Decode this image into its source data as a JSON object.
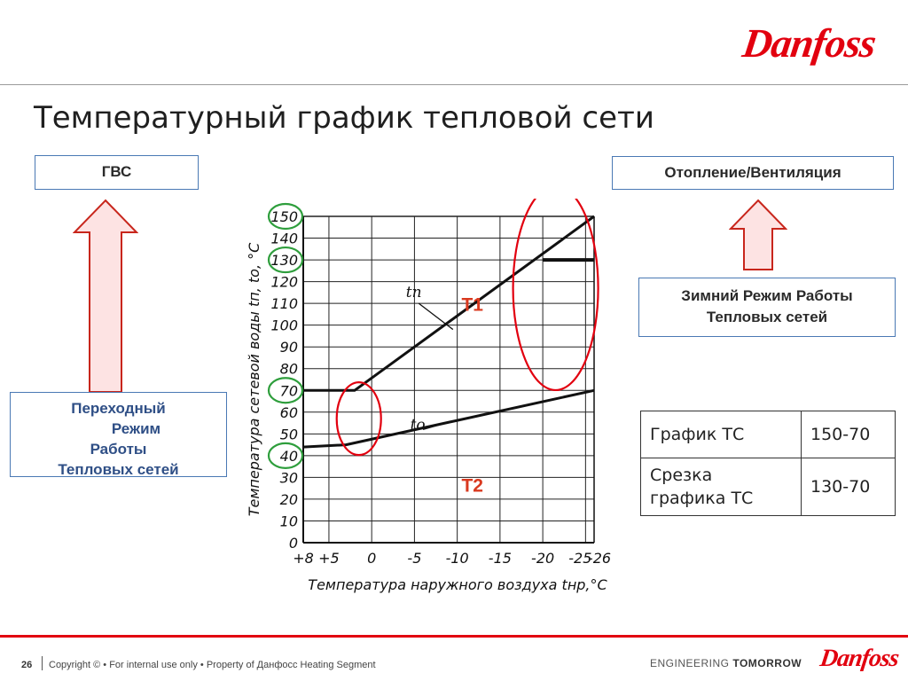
{
  "brand": {
    "name": "Danfoss"
  },
  "slide": {
    "title": "Температурный график тепловой сети"
  },
  "boxes": {
    "gvs": "ГВС",
    "heating": "Отопление/Вентиляция",
    "winter": [
      "Зимний Режим Работы",
      "Тепловых сетей"
    ],
    "transition": [
      "Переходный",
      "Режим",
      "Работы",
      "Тепловых сетей"
    ]
  },
  "table": {
    "rows": [
      {
        "label": "График ТС",
        "value": "150-70"
      },
      {
        "label": "Срезка графика ТС",
        "value": "130-70"
      }
    ]
  },
  "chart_data": {
    "type": "line",
    "xlabel": "Температура наружного воздуха tнр,°C",
    "ylabel": "Температура сетевой воды tп, tо, °C",
    "x_ticks": [
      "+8",
      "+5",
      "0",
      "-5",
      "-10",
      "-15",
      "-20",
      "-25",
      "-26"
    ],
    "x_tick_values": [
      8,
      5,
      0,
      -5,
      -10,
      -15,
      -20,
      -25,
      -26
    ],
    "y_ticks": [
      0,
      10,
      20,
      30,
      40,
      50,
      60,
      70,
      80,
      90,
      100,
      110,
      120,
      130,
      140,
      150
    ],
    "xlim": [
      8,
      -26
    ],
    "ylim": [
      0,
      150
    ],
    "grid": true,
    "series": [
      {
        "name": "tп",
        "points": [
          [
            8,
            70
          ],
          [
            2,
            70
          ],
          [
            -26,
            150
          ]
        ]
      },
      {
        "name": "tп",
        "points": [
          [
            -20,
            130
          ],
          [
            -26,
            130
          ]
        ]
      },
      {
        "name": "tо",
        "points": [
          [
            8,
            44
          ],
          [
            3,
            45
          ],
          [
            -26,
            70
          ]
        ]
      }
    ],
    "annotations": [
      "Т1",
      "Т2"
    ],
    "colors": {
      "lines": "#111111",
      "highlight_circle": "#2e9e3c",
      "region_ellipse": "#e2000f",
      "annotation_text": "#d9391f"
    }
  },
  "footer": {
    "page": "26",
    "copyright": "Copyright © • For internal use only • Property of Данфосс Heating Segment",
    "tagline_light": "ENGINEERING",
    "tagline_bold": "TOMORROW"
  }
}
